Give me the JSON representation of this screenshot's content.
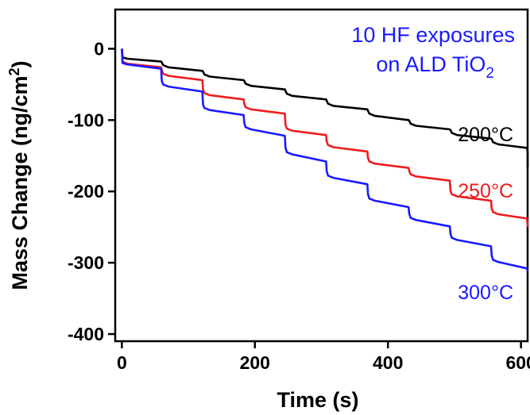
{
  "chart_data": {
    "type": "line",
    "xlabel": "Time (s)",
    "ylabel_parts": {
      "main": "Mass Change (ng/cm",
      "sup": "2",
      "close": ")"
    },
    "xlim": [
      -10,
      610
    ],
    "ylim": [
      -410,
      55
    ],
    "xticks": [
      0,
      200,
      400,
      600
    ],
    "yticks": [
      0,
      -100,
      -200,
      -300,
      -400
    ],
    "grid": false,
    "annotation": {
      "line1": "10 HF exposures",
      "line2_main": "on ALD TiO",
      "line2_sub": "2",
      "color": "#1a1aff"
    },
    "series": [
      {
        "name": "200°C",
        "color": "#000000",
        "x0": 0,
        "v0": 0,
        "first_drop": -12,
        "steps": [
          [
            0,
            -14,
            -18,
            -3
          ],
          [
            60,
            -23,
            -31,
            -4
          ],
          [
            122,
            -36,
            -44,
            -4
          ],
          [
            184,
            -49,
            -57,
            -4
          ],
          [
            246,
            -63,
            -71,
            -4
          ],
          [
            308,
            -77,
            -85,
            -4
          ],
          [
            370,
            -91,
            -100,
            -4
          ],
          [
            432,
            -105,
            -113,
            -4
          ],
          [
            494,
            -118,
            -126,
            -4
          ],
          [
            556,
            -131,
            -139,
            -4
          ],
          [
            610,
            -144,
            -144,
            0
          ]
        ],
        "end": -166
      },
      {
        "name": "250°C",
        "color": "#ee1c1c",
        "x0": 0,
        "v0": 0,
        "first_drop": -18,
        "steps": [
          [
            0,
            -21,
            -26,
            -3
          ],
          [
            60,
            -35,
            -44,
            -5
          ],
          [
            122,
            -62,
            -71,
            -5
          ],
          [
            184,
            -82,
            -91,
            -5
          ],
          [
            246,
            -112,
            -121,
            -5
          ],
          [
            308,
            -135,
            -144,
            -5
          ],
          [
            370,
            -158,
            -167,
            -5
          ],
          [
            432,
            -176,
            -185,
            -5
          ],
          [
            494,
            -204,
            -213,
            -5
          ],
          [
            556,
            -229,
            -238,
            -5
          ],
          [
            610,
            -248,
            -248,
            0
          ]
        ],
        "end": -250
      },
      {
        "name": "300°C",
        "color": "#1a1aff",
        "x0": 0,
        "v0": 0,
        "first_drop": -20,
        "steps": [
          [
            0,
            -22,
            -28,
            -3
          ],
          [
            60,
            -50,
            -60,
            -5
          ],
          [
            122,
            -83,
            -93,
            -5
          ],
          [
            184,
            -110,
            -122,
            -6
          ],
          [
            246,
            -145,
            -158,
            -6
          ],
          [
            308,
            -178,
            -190,
            -6
          ],
          [
            370,
            -210,
            -222,
            -6
          ],
          [
            432,
            -237,
            -249,
            -6
          ],
          [
            494,
            -265,
            -277,
            -6
          ],
          [
            556,
            -296,
            -308,
            -6
          ],
          [
            610,
            -312,
            -312,
            0
          ]
        ],
        "end": -312
      }
    ]
  }
}
